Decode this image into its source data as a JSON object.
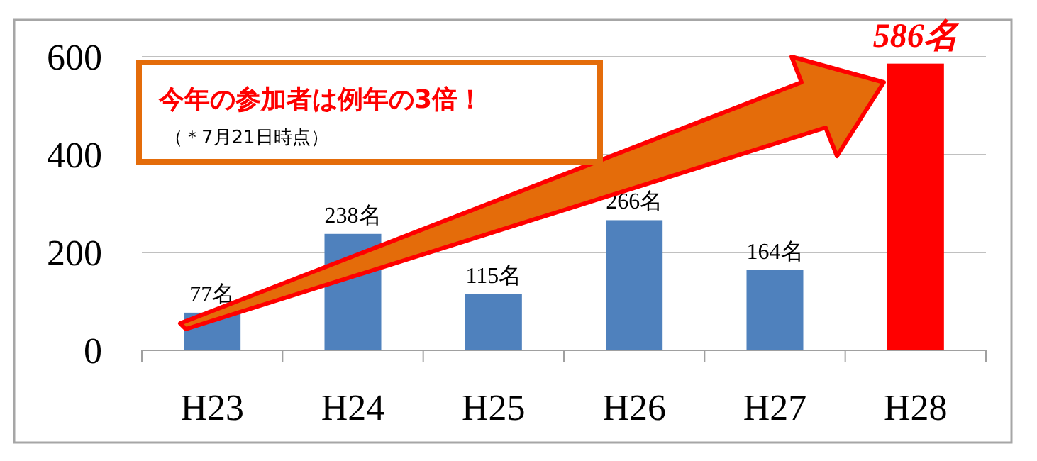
{
  "chart_data": {
    "type": "bar",
    "categories": [
      "H23",
      "H24",
      "H25",
      "H26",
      "H27",
      "H28"
    ],
    "values": [
      77,
      238,
      115,
      266,
      164,
      586
    ],
    "colors": [
      "#4f81bd",
      "#4f81bd",
      "#4f81bd",
      "#4f81bd",
      "#4f81bd",
      "#ff0000"
    ],
    "value_labels": [
      "77名",
      "238名",
      "115名",
      "266名",
      "164名",
      "586名"
    ],
    "ylim": [
      0,
      600
    ],
    "yticks": [
      0,
      200,
      400,
      600
    ],
    "grid": "y",
    "annotations": [
      "今年の参加者は例年の3倍！",
      "（＊7月21日時点）"
    ]
  }
}
